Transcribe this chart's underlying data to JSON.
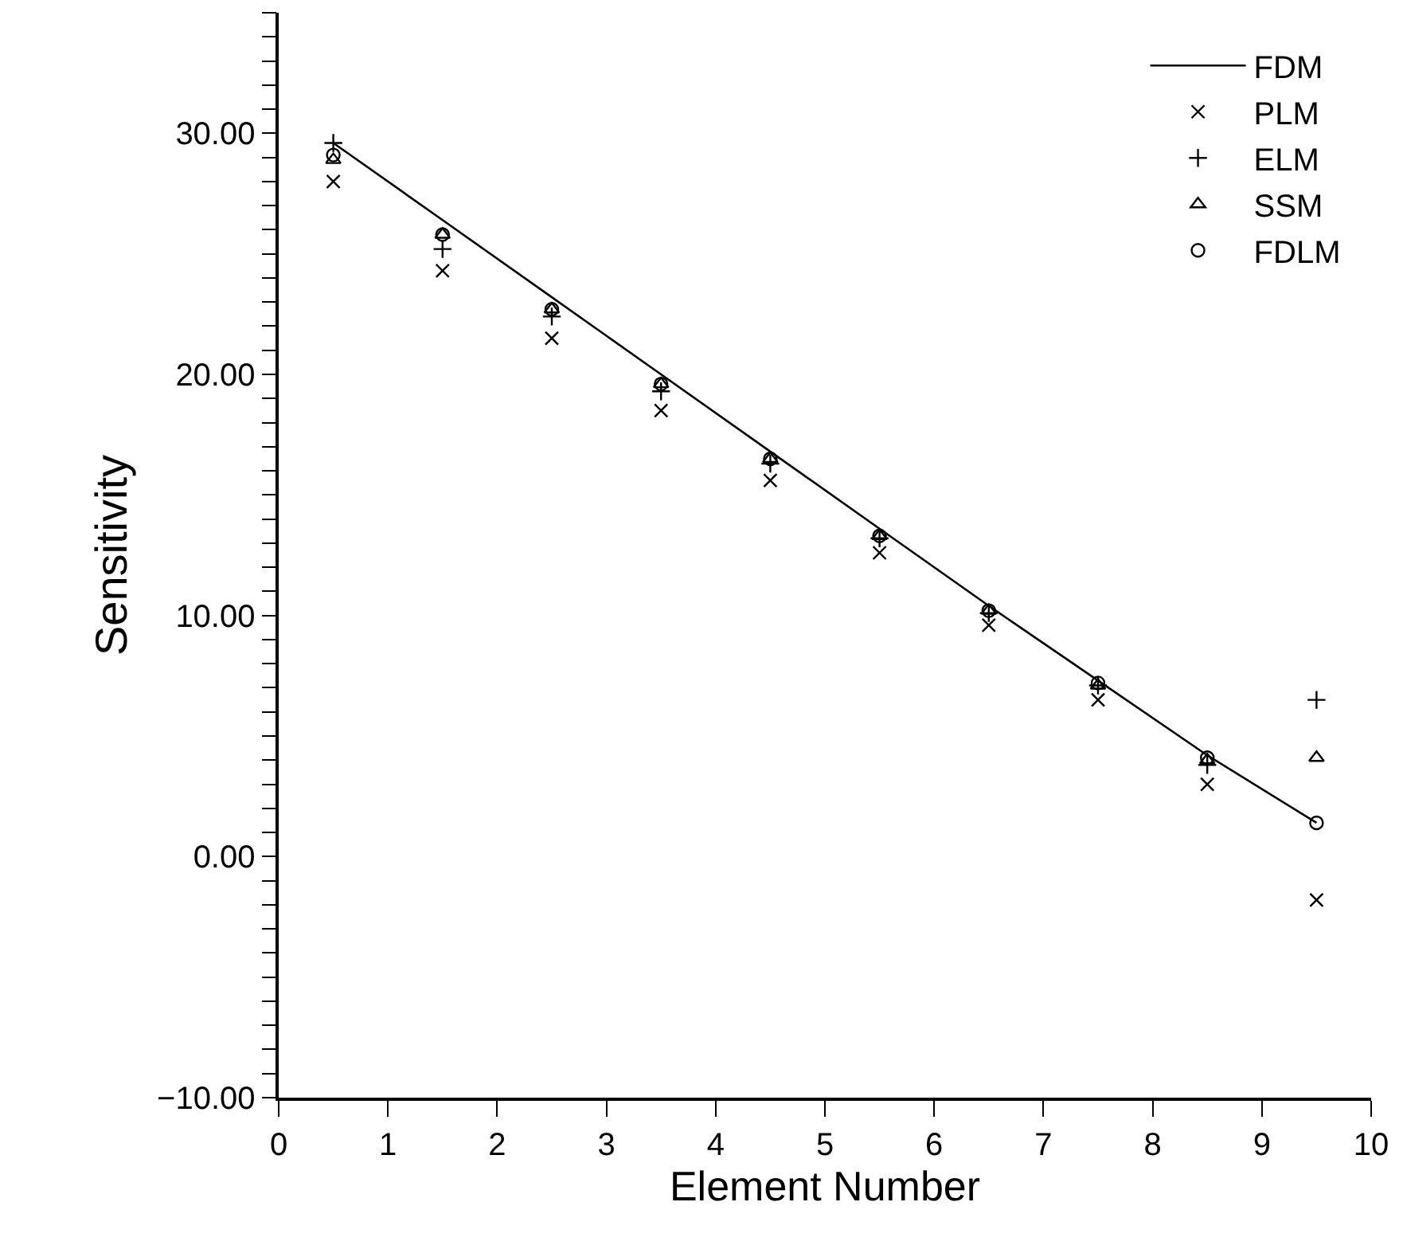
{
  "chart_data": {
    "type": "scatter",
    "xlabel": "Element Number",
    "ylabel": "Sensitivity",
    "x": [
      0.5,
      1.5,
      2.5,
      3.5,
      4.5,
      5.5,
      6.5,
      7.5,
      8.5,
      9.5
    ],
    "series": [
      {
        "name": "FDM",
        "type": "line",
        "color": "#000000",
        "marker": "none",
        "line_style": "solid",
        "values": [
          29.6,
          26.4,
          23.2,
          20.0,
          16.8,
          13.6,
          10.4,
          7.3,
          4.2,
          1.4
        ]
      },
      {
        "name": "PLM",
        "color": "#000000",
        "marker": "cross",
        "values": [
          28.0,
          24.3,
          21.5,
          18.5,
          15.6,
          12.6,
          9.6,
          6.5,
          3.0,
          -1.8
        ]
      },
      {
        "name": "ELM",
        "color": "#000000",
        "marker": "plus",
        "values": [
          29.6,
          25.2,
          22.4,
          19.3,
          16.3,
          13.2,
          10.1,
          7.1,
          3.8,
          6.5
        ]
      },
      {
        "name": "SSM",
        "color": "#000000",
        "marker": "triangle",
        "values": [
          28.9,
          25.8,
          22.7,
          19.6,
          16.5,
          13.3,
          10.2,
          7.1,
          4.0,
          4.1
        ]
      },
      {
        "name": "FDLM",
        "color": "#000000",
        "marker": "circle",
        "values": [
          29.1,
          25.8,
          22.7,
          19.6,
          16.5,
          13.3,
          10.2,
          7.2,
          4.1,
          1.4
        ]
      }
    ],
    "xlim": [
      0,
      10
    ],
    "xticks": [
      0,
      1,
      2,
      3,
      4,
      5,
      6,
      7,
      8,
      9,
      10
    ],
    "ylim": [
      -10,
      35
    ],
    "yticks": [
      {
        "value": -10,
        "label": "−10.00"
      },
      {
        "value": -9,
        "label": null
      },
      {
        "value": -8,
        "label": null
      },
      {
        "value": -7,
        "label": null
      },
      {
        "value": -6,
        "label": null
      },
      {
        "value": -5,
        "label": null
      },
      {
        "value": -4,
        "label": null
      },
      {
        "value": -3,
        "label": null
      },
      {
        "value": -2,
        "label": null
      },
      {
        "value": -1,
        "label": null
      },
      {
        "value": 0,
        "label": "0.00"
      },
      {
        "value": 1,
        "label": null
      },
      {
        "value": 2,
        "label": null
      },
      {
        "value": 3,
        "label": null
      },
      {
        "value": 4,
        "label": null
      },
      {
        "value": 5,
        "label": null
      },
      {
        "value": 6,
        "label": null
      },
      {
        "value": 7,
        "label": null
      },
      {
        "value": 8,
        "label": null
      },
      {
        "value": 9,
        "label": null
      },
      {
        "value": 10,
        "label": "10.00"
      },
      {
        "value": 11,
        "label": null
      },
      {
        "value": 12,
        "label": null
      },
      {
        "value": 13,
        "label": null
      },
      {
        "value": 14,
        "label": null
      },
      {
        "value": 15,
        "label": null
      },
      {
        "value": 16,
        "label": null
      },
      {
        "value": 17,
        "label": null
      },
      {
        "value": 18,
        "label": null
      },
      {
        "value": 19,
        "label": null
      },
      {
        "value": 20,
        "label": "20.00"
      },
      {
        "value": 21,
        "label": null
      },
      {
        "value": 22,
        "label": null
      },
      {
        "value": 23,
        "label": null
      },
      {
        "value": 24,
        "label": null
      },
      {
        "value": 25,
        "label": null
      },
      {
        "value": 26,
        "label": null
      },
      {
        "value": 27,
        "label": null
      },
      {
        "value": 28,
        "label": null
      },
      {
        "value": 29,
        "label": null
      },
      {
        "value": 30,
        "label": "30.00"
      },
      {
        "value": 31,
        "label": null
      },
      {
        "value": 32,
        "label": null
      },
      {
        "value": 33,
        "label": null
      },
      {
        "value": 34,
        "label": null
      },
      {
        "value": 35,
        "label": null
      }
    ],
    "grid": false,
    "legend": "top right"
  }
}
